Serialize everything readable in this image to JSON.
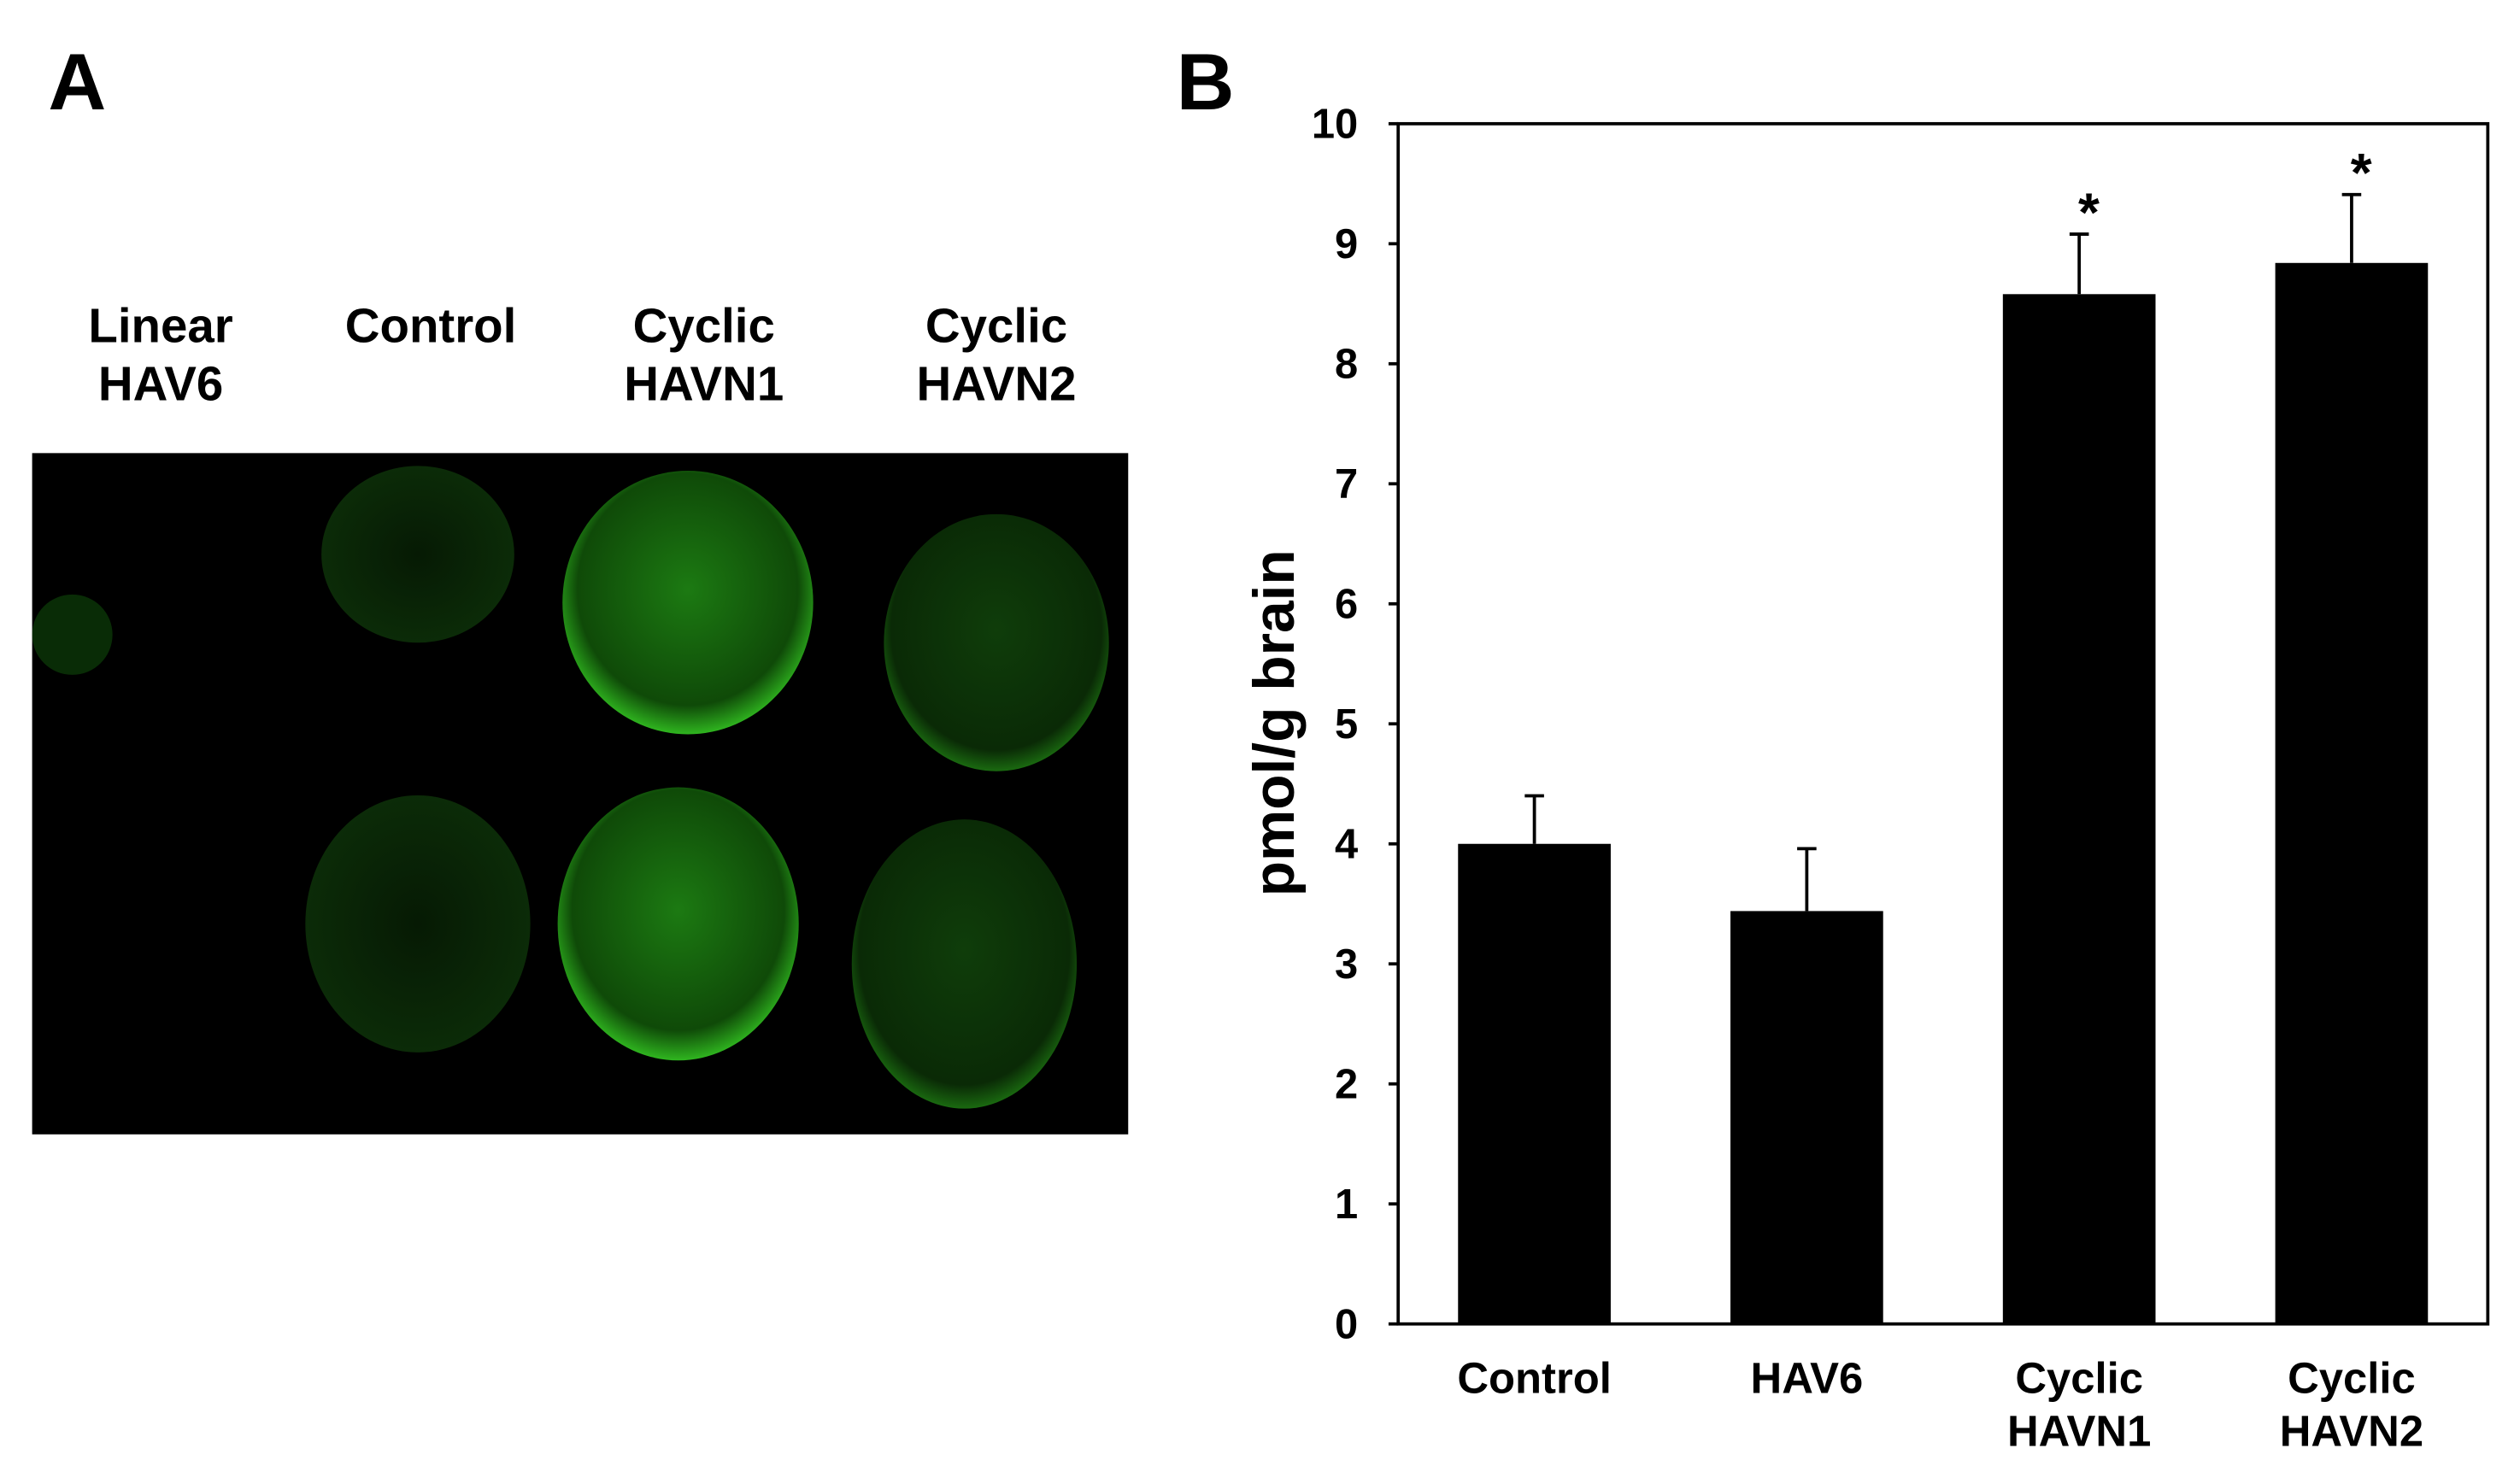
{
  "image_panel": {
    "panel_label": "A",
    "labels": [
      "Linear\nHAV6",
      "Control",
      "Cyclic\nHAVN1",
      "Cyclic\nHAVN2"
    ]
  },
  "chart_data": {
    "type": "bar",
    "panel_label": "B",
    "y_label": "pmol/g brain",
    "categories": [
      "Control",
      "HAV6",
      "Cyclic\nHAVN1",
      "Cyclic\nHAVN2"
    ],
    "values": [
      4.0,
      3.44,
      8.58,
      8.84
    ],
    "errors": [
      0.4,
      0.52,
      0.5,
      0.57
    ],
    "significance": [
      null,
      null,
      "*",
      "*"
    ],
    "color": "#000000",
    "ylim": [
      0,
      10
    ],
    "yticks": [
      0,
      1,
      2,
      3,
      4,
      5,
      6,
      7,
      8,
      9,
      10
    ],
    "grid": false
  }
}
